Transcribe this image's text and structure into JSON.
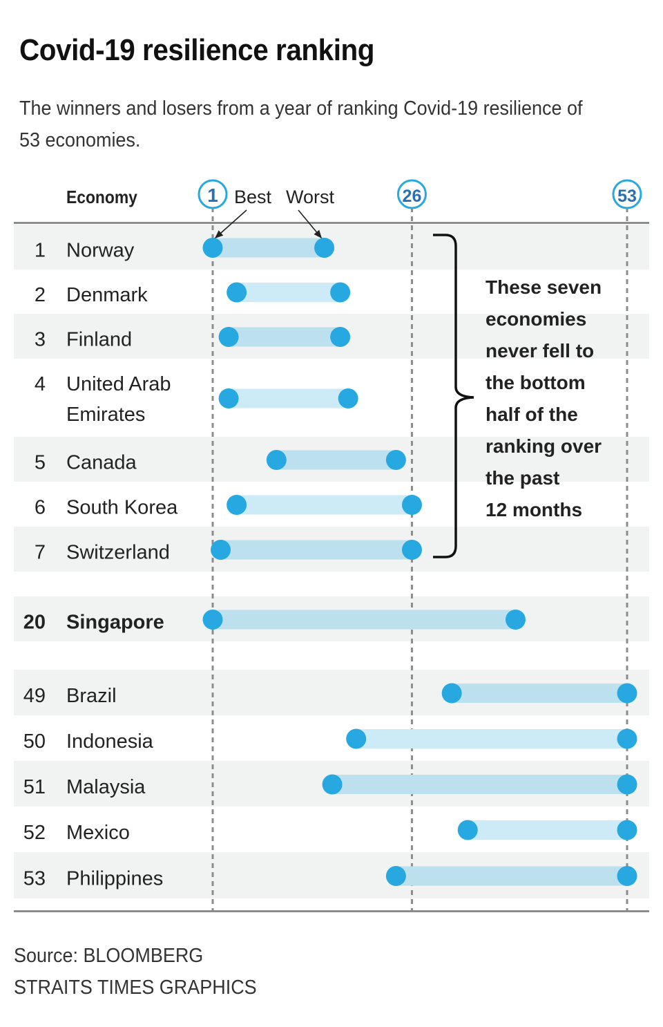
{
  "title": "Covid-19 resilience ranking",
  "subtitle": "The winners and losers from a year of ranking Covid-19 resilience of 53 economies.",
  "footer": {
    "source": "Source: BLOOMBERG",
    "credit": "STRAITS TIMES GRAPHICS"
  },
  "colors": {
    "dot": "#27a8e0",
    "bar_on_gray": "#bde0ee",
    "bar_on_white": "#cdeaf7",
    "row_gray": "#f1f2f2",
    "axis": "#8c8c8c",
    "tick_ring": "#27a8e0",
    "tick_text": "#2a6fb5"
  },
  "chart_data": {
    "type": "dumbbell",
    "title": "Covid-19 resilience ranking",
    "column_header": "Economy",
    "xlim": [
      1,
      53
    ],
    "x_ticks": [
      1,
      26,
      53
    ],
    "legend": {
      "best": "Best",
      "worst": "Worst"
    },
    "annotation": "These seven economies never fell to the bottom half of the ranking over the past 12 months",
    "groups": [
      {
        "rows": [
          {
            "rank": "1",
            "economy": "Norway",
            "best": 1,
            "worst": 15
          },
          {
            "rank": "2",
            "economy": "Denmark",
            "best": 4,
            "worst": 17
          },
          {
            "rank": "3",
            "economy": "Finland",
            "best": 3,
            "worst": 17
          },
          {
            "rank": "4",
            "economy": "United Arab Emirates",
            "best": 3,
            "worst": 18
          },
          {
            "rank": "5",
            "economy": "Canada",
            "best": 9,
            "worst": 24
          },
          {
            "rank": "6",
            "economy": "South Korea",
            "best": 4,
            "worst": 26
          },
          {
            "rank": "7",
            "economy": "Switzerland",
            "best": 2,
            "worst": 26
          }
        ]
      },
      {
        "rows": [
          {
            "rank": "20",
            "economy": "Singapore",
            "best": 1,
            "worst": 39,
            "highlight": true
          }
        ]
      },
      {
        "rows": [
          {
            "rank": "49",
            "economy": "Brazil",
            "best": 31,
            "worst": 53
          },
          {
            "rank": "50",
            "economy": "Indonesia",
            "best": 19,
            "worst": 53
          },
          {
            "rank": "51",
            "economy": "Malaysia",
            "best": 16,
            "worst": 53
          },
          {
            "rank": "52",
            "economy": "Mexico",
            "best": 33,
            "worst": 53
          },
          {
            "rank": "53",
            "economy": "Philippines",
            "best": 24,
            "worst": 53
          }
        ]
      }
    ]
  }
}
